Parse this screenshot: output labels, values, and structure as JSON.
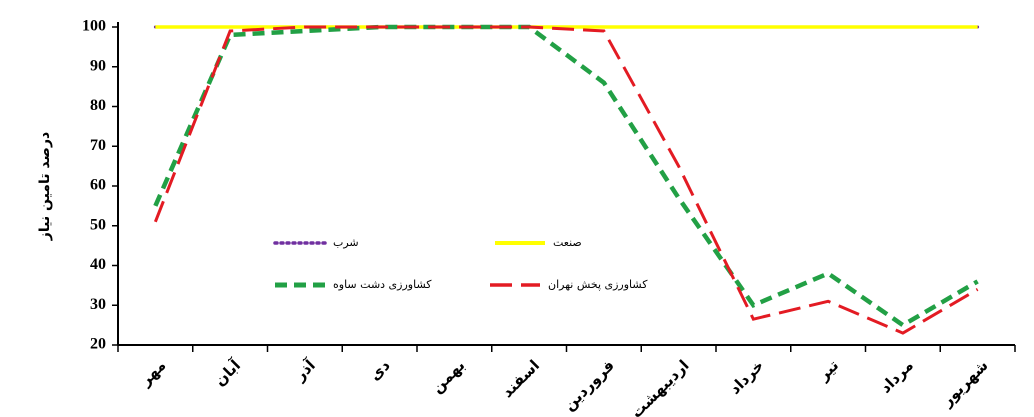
{
  "chart_data": {
    "type": "line",
    "y_label": "درصد تامین نیاز",
    "categories": [
      "مهر",
      "آبان",
      "آذر",
      "دی",
      "بهمن",
      "اسفند",
      "فروردین",
      "اردیبهشت",
      "خرداد",
      "تیر",
      "مرداد",
      "شهریور"
    ],
    "series": [
      {
        "name": "شرب",
        "color": "#7030a0",
        "dash": "dot",
        "values": [
          100,
          100,
          100,
          100,
          100,
          100,
          100,
          100,
          100,
          100,
          100,
          100
        ]
      },
      {
        "name": "صنعت",
        "color": "#ffff00",
        "dash": "solid",
        "values": [
          100,
          100,
          100,
          100,
          100,
          100,
          100,
          100,
          100,
          100,
          100,
          100
        ]
      },
      {
        "name": "کشاورزی دشت ساوه",
        "color": "#22a045",
        "dash": "dash",
        "values": [
          55,
          98,
          99,
          100,
          100,
          100,
          86,
          57,
          30,
          38,
          25,
          36
        ]
      },
      {
        "name": "کشاورزی پخش نهران",
        "color": "#e31b23",
        "dash": "longdash",
        "values": [
          51,
          99,
          100,
          100,
          100,
          100,
          99,
          65,
          26.5,
          31,
          23,
          34
        ]
      }
    ],
    "ylim": [
      20,
      100
    ],
    "yticks": [
      20,
      30,
      40,
      50,
      60,
      70,
      80,
      90,
      100
    ]
  }
}
